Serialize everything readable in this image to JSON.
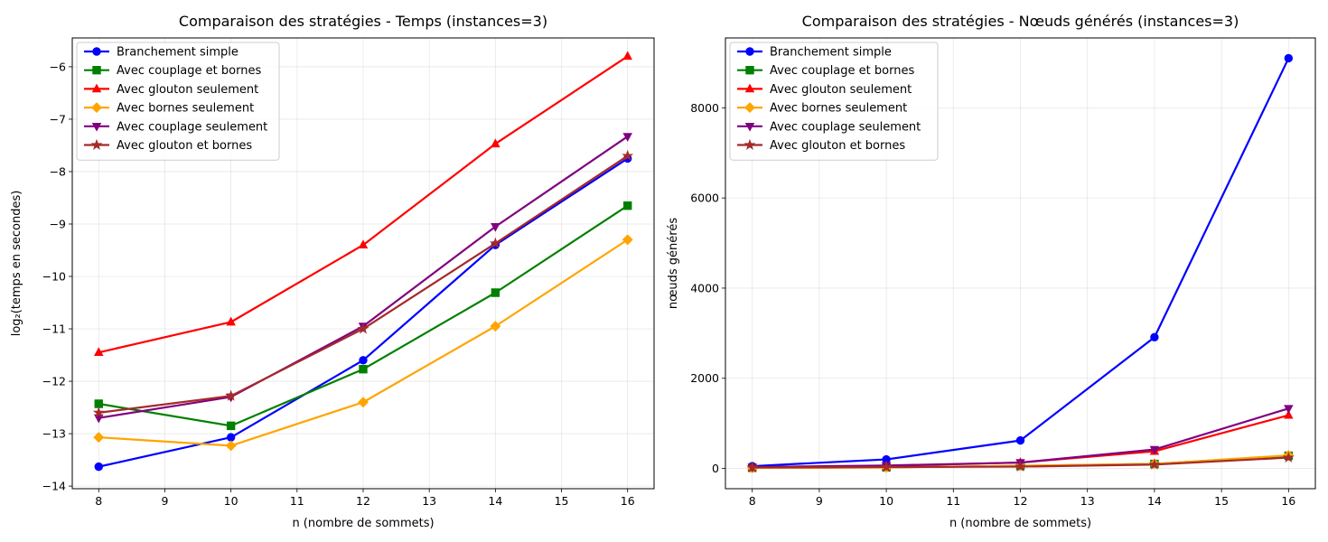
{
  "chart_data": [
    {
      "type": "line",
      "title": "Comparaison des stratégies - Temps (instances=3)",
      "xlabel": "n (nombre de sommets)",
      "ylabel": "log₂(temps en secondes)",
      "x": [
        8,
        10,
        12,
        14,
        16
      ],
      "xlim": [
        7.6,
        16.4
      ],
      "ylim": [
        -14.05,
        -5.45
      ],
      "xticks": [
        8,
        9,
        10,
        11,
        12,
        13,
        14,
        15,
        16
      ],
      "yticks": [
        -14,
        -13,
        -12,
        -11,
        -10,
        -9,
        -8,
        -7,
        -6
      ],
      "ytick_labels": [
        "−14",
        "−13",
        "−12",
        "−11",
        "−10",
        "−9",
        "−8",
        "−7",
        "−6"
      ],
      "grid": true,
      "legend_position": "top-left",
      "series": [
        {
          "name": "Branchement simple",
          "color": "#0000ff",
          "marker": "circle",
          "values": [
            -13.63,
            -13.07,
            -11.6,
            -9.4,
            -7.75
          ]
        },
        {
          "name": "Avec couplage et bornes",
          "color": "#008000",
          "marker": "square",
          "values": [
            -12.43,
            -12.85,
            -11.77,
            -10.31,
            -8.65
          ]
        },
        {
          "name": "Avec glouton seulement",
          "color": "#ff0000",
          "marker": "triangle-up",
          "values": [
            -11.45,
            -10.87,
            -9.4,
            -7.47,
            -5.8
          ]
        },
        {
          "name": "Avec bornes seulement",
          "color": "#ffa500",
          "marker": "diamond",
          "values": [
            -13.07,
            -13.23,
            -12.4,
            -10.95,
            -9.3
          ]
        },
        {
          "name": "Avec couplage seulement",
          "color": "#800080",
          "marker": "triangle-down",
          "values": [
            -12.7,
            -12.3,
            -10.95,
            -9.05,
            -7.33
          ]
        },
        {
          "name": "Avec glouton et bornes",
          "color": "#a52a2a",
          "marker": "star",
          "values": [
            -12.6,
            -12.28,
            -11.0,
            -9.37,
            -7.7
          ]
        }
      ]
    },
    {
      "type": "line",
      "title": "Comparaison des stratégies - Nœuds générés (instances=3)",
      "xlabel": "n (nombre de sommets)",
      "ylabel": "nœuds générés",
      "x": [
        8,
        10,
        12,
        14,
        16
      ],
      "xlim": [
        7.6,
        16.4
      ],
      "ylim": [
        -450,
        9550
      ],
      "xticks": [
        8,
        9,
        10,
        11,
        12,
        13,
        14,
        15,
        16
      ],
      "yticks": [
        0,
        2000,
        4000,
        6000,
        8000
      ],
      "ytick_labels": [
        "0",
        "2000",
        "4000",
        "6000",
        "8000"
      ],
      "grid": true,
      "legend_position": "top-left",
      "series": [
        {
          "name": "Branchement simple",
          "color": "#0000ff",
          "marker": "circle",
          "values": [
            50,
            200,
            620,
            2910,
            9100
          ]
        },
        {
          "name": "Avec couplage et bornes",
          "color": "#008000",
          "marker": "square",
          "values": [
            15,
            25,
            55,
            100,
            280
          ]
        },
        {
          "name": "Avec glouton seulement",
          "color": "#ff0000",
          "marker": "triangle-up",
          "values": [
            25,
            55,
            130,
            380,
            1180
          ]
        },
        {
          "name": "Avec bornes seulement",
          "color": "#ffa500",
          "marker": "diamond",
          "values": [
            10,
            20,
            60,
            100,
            290
          ]
        },
        {
          "name": "Avec couplage seulement",
          "color": "#800080",
          "marker": "triangle-down",
          "values": [
            30,
            65,
            130,
            420,
            1330
          ]
        },
        {
          "name": "Avec glouton et bornes",
          "color": "#a52a2a",
          "marker": "star",
          "values": [
            20,
            30,
            40,
            85,
            240
          ]
        }
      ]
    }
  ]
}
